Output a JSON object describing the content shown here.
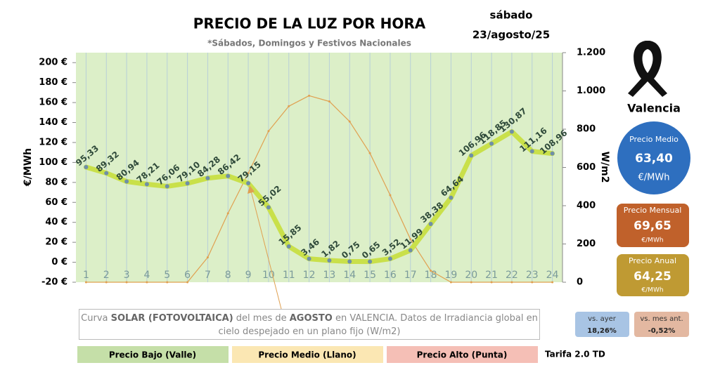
{
  "chart_data": {
    "type": "line",
    "title": "PRECIO DE LA LUZ POR HORA",
    "subtitle": "*Sábados, Domingos y Festivos Nacionales",
    "date": [
      "sábado",
      "23/agosto/25"
    ],
    "ylabel": "€/MWh",
    "y2label": "W/m2",
    "categories": [
      "1",
      "2",
      "3",
      "4",
      "5",
      "6",
      "7",
      "8",
      "9",
      "10",
      "11",
      "12",
      "13",
      "14",
      "15",
      "16",
      "17",
      "18",
      "19",
      "20",
      "21",
      "22",
      "23",
      "24"
    ],
    "series": [
      {
        "color": "#c9e04a",
        "marker_color": "#6f8fa8",
        "values": [
          95.33,
          89.32,
          80.94,
          78.21,
          76.06,
          79.1,
          84.28,
          86.42,
          79.15,
          55.02,
          15.85,
          3.46,
          1.82,
          0.75,
          0.65,
          3.52,
          11.99,
          38.38,
          64.64,
          106.96,
          118.85,
          130.87,
          111.16,
          108.96
        ],
        "value_labels": [
          "95,33",
          "89,32",
          "80,94",
          "78,21",
          "76,06",
          "79,10",
          "84,28",
          "86,42",
          "79,15",
          "55,02",
          "15,85",
          "3,46",
          "1,82",
          "0,75",
          "0,65",
          "3,52",
          "11,99",
          "38,38",
          "64,64",
          "106,96",
          "118,85",
          "130,87",
          "111,16",
          "108,96"
        ]
      },
      {
        "color": "#e0a050",
        "axis": "y2",
        "values": [
          0,
          0,
          0,
          0,
          0,
          0,
          130,
          360,
          570,
          790,
          920,
          975,
          945,
          840,
          675,
          455,
          225,
          60,
          0,
          0,
          0,
          0,
          0,
          0
        ]
      }
    ],
    "ylim": [
      -20,
      210
    ],
    "yticks": [
      {
        "value": -20,
        "label": "-20 €"
      },
      {
        "value": 0,
        "label": "0 €"
      },
      {
        "value": 20,
        "label": "20 €"
      },
      {
        "value": 40,
        "label": "40 €"
      },
      {
        "value": 60,
        "label": "60 €"
      },
      {
        "value": 80,
        "label": "80 €"
      },
      {
        "value": 100,
        "label": "100 €"
      },
      {
        "value": 120,
        "label": "120 €"
      },
      {
        "value": 140,
        "label": "140 €"
      },
      {
        "value": 160,
        "label": "160 €"
      },
      {
        "value": 180,
        "label": "180 €"
      },
      {
        "value": 200,
        "label": "200 €"
      }
    ],
    "y2lim": [
      0,
      1200
    ],
    "y2ticks": [
      0,
      200,
      400,
      600,
      800,
      {
        "value": 1000,
        "label": "1.000"
      },
      {
        "value": 1200,
        "label": "1.200"
      }
    ],
    "plot_color": "#dcefc8",
    "annotation": [
      "Curva ",
      "SOLAR (FOTOVOLTAICA)",
      " del mes de ",
      "AGOSTO",
      " en VALENCIA. Datos de Irradiancia global en cielo despejado en un plano fijo (W/m2)"
    ],
    "legend": [
      {
        "name": "Precio Bajo (Valle)",
        "color": "#c5dfa8"
      },
      {
        "name": "Precio Medio (Llano)",
        "color": "#fbe7b3"
      },
      {
        "name": "Precio Alto (Punta)",
        "color": "#f5bfb6"
      }
    ],
    "tariff": "Tarifa 2.0 TD"
  },
  "panel": {
    "city": "Valencia",
    "medio": {
      "label": "Precio Medio",
      "value": "63,40",
      "unit": "€/MWh",
      "color": "#2e6fbf"
    },
    "mensual": {
      "label": "Precio Mensual",
      "value": "69,65",
      "unit": "€/MWh",
      "color": "#c0612b"
    },
    "anual": {
      "label": "Precio Anual",
      "value": "64,25",
      "unit": "€/MWh",
      "color": "#bf9a33"
    },
    "ayer": {
      "label": "vs. ayer",
      "value": "18,26%",
      "color": "#a8c4e4"
    },
    "mes": {
      "label": "vs. mes ant.",
      "value": "-0,52%",
      "color": "#e3b8a1"
    }
  }
}
